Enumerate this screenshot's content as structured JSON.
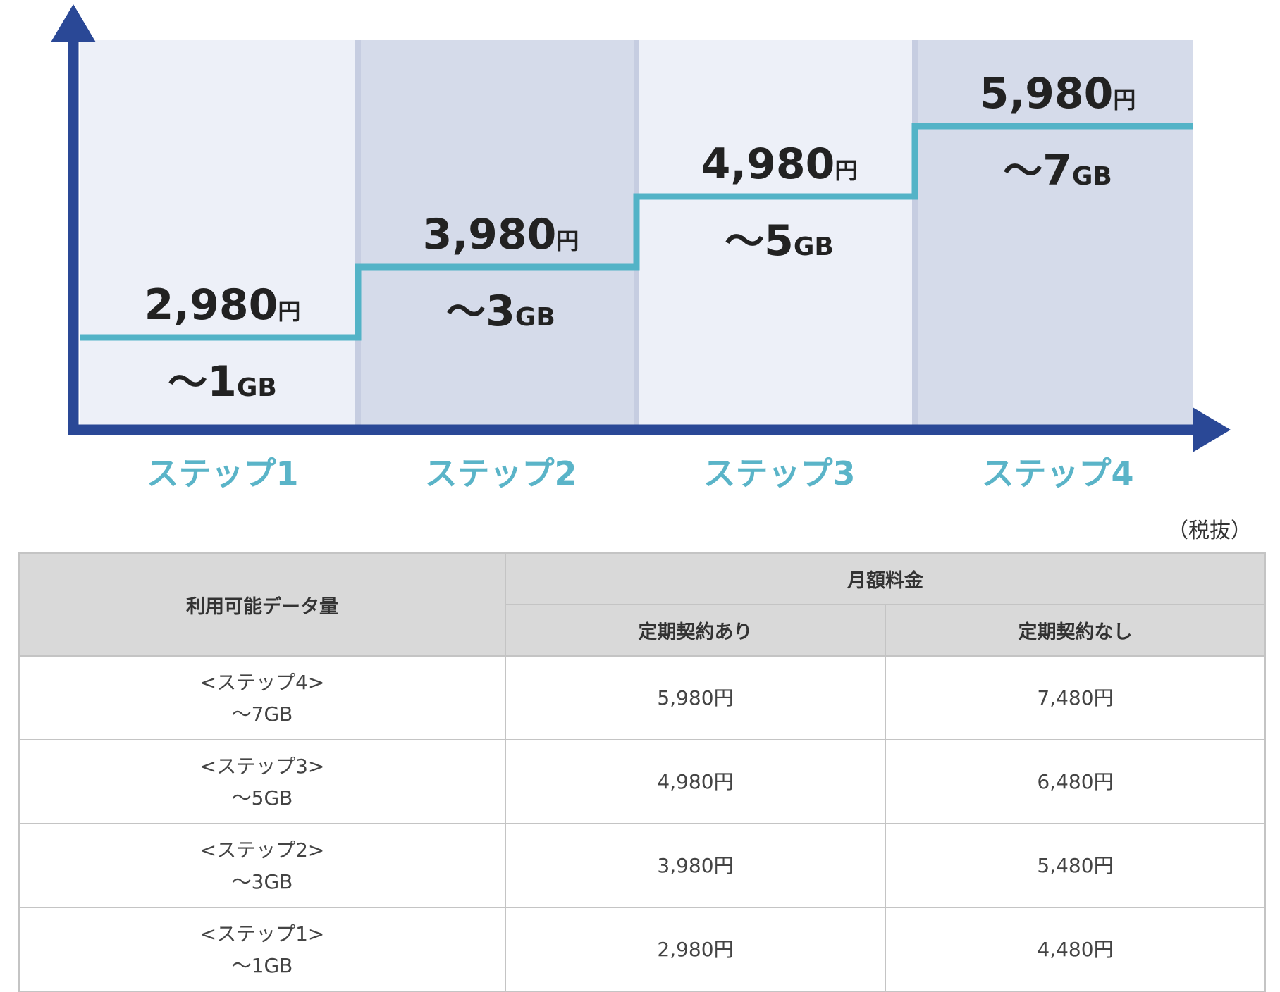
{
  "chart_data": {
    "type": "step",
    "categories": [
      "ステップ1",
      "ステップ2",
      "ステップ3",
      "ステップ4"
    ],
    "values": [
      2980,
      3980,
      4980,
      5980
    ],
    "price_labels": [
      "2,980",
      "3,980",
      "4,980",
      "5,980"
    ],
    "price_unit": "円",
    "data_limits": [
      "1",
      "3",
      "5",
      "7"
    ],
    "data_prefix": "～",
    "data_unit": "GB",
    "colors": {
      "axis": "#2a4896",
      "step_line": "#53b3c7",
      "band_light": "#edf0f8",
      "band_dark": "#d5dbea",
      "band_separator": "#c6cde1",
      "category_label": "#5ab4c8"
    }
  },
  "note": "（税抜）",
  "table": {
    "header_left": "利用可能データ量",
    "header_group": "月額料金",
    "header_sub": [
      "定期契約あり",
      "定期契約なし"
    ],
    "rows": [
      {
        "step": "<ステップ4>",
        "data": "～7GB",
        "with_contract": "5,980円",
        "without_contract": "7,480円"
      },
      {
        "step": "<ステップ3>",
        "data": "～5GB",
        "with_contract": "4,980円",
        "without_contract": "6,480円"
      },
      {
        "step": "<ステップ2>",
        "data": "～3GB",
        "with_contract": "3,980円",
        "without_contract": "5,480円"
      },
      {
        "step": "<ステップ1>",
        "data": "～1GB",
        "with_contract": "2,980円",
        "without_contract": "4,480円"
      }
    ]
  }
}
